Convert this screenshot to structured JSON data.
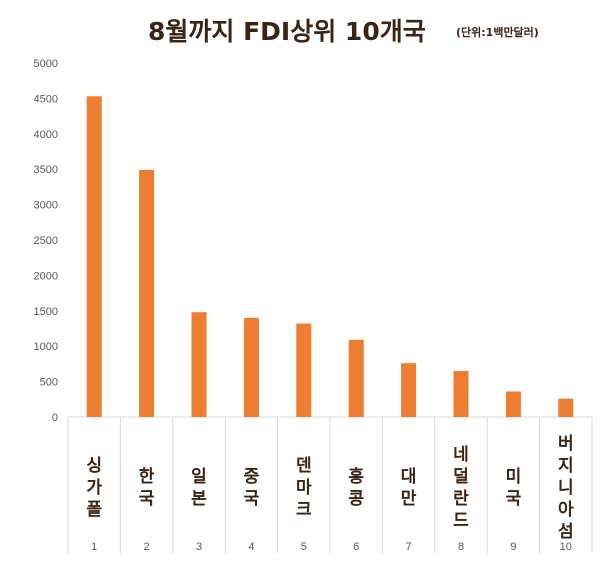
{
  "chart_data": {
    "type": "bar",
    "title": "8월까지 FDI상위 10개국",
    "subtitle": "(단위:1백만달러)",
    "categories": [
      "싱가폴",
      "한국",
      "일본",
      "중국",
      "덴마크",
      "홍콩",
      "대만",
      "네덜란드",
      "미국",
      "버지니아섬"
    ],
    "indices": [
      "1",
      "2",
      "3",
      "4",
      "5",
      "6",
      "7",
      "8",
      "9",
      "10"
    ],
    "values": [
      4530,
      3490,
      1480,
      1400,
      1320,
      1090,
      760,
      650,
      360,
      260
    ],
    "ylim": [
      0,
      5000
    ],
    "yticks": [
      0,
      500,
      1000,
      1500,
      2000,
      2500,
      3000,
      3500,
      4000,
      4500,
      5000
    ],
    "grid": false,
    "legend": "none",
    "bar_color": "#ed7d31"
  }
}
